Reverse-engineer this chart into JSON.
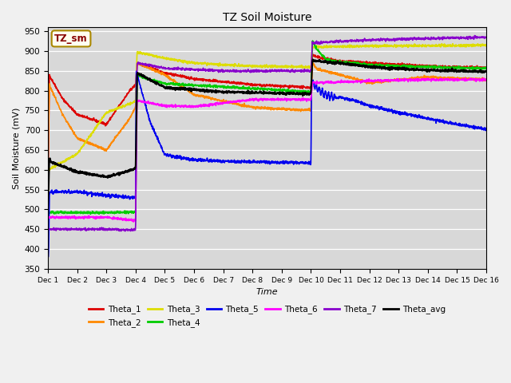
{
  "title": "TZ Soil Moisture",
  "ylabel": "Soil Moisture (mV)",
  "xlabel": "Time",
  "ylim": [
    350,
    960
  ],
  "yticks": [
    350,
    400,
    450,
    500,
    550,
    600,
    650,
    700,
    750,
    800,
    850,
    900,
    950
  ],
  "bg_color": "#d8d8d8",
  "fig_color": "#f0f0f0",
  "legend_box_label": "TZ_sm",
  "series_colors": {
    "Theta_1": "#dd0000",
    "Theta_2": "#ff8800",
    "Theta_3": "#dddd00",
    "Theta_4": "#00cc00",
    "Theta_5": "#0000ee",
    "Theta_6": "#ff00ff",
    "Theta_7": "#8800cc",
    "Theta_avg": "#000000"
  }
}
